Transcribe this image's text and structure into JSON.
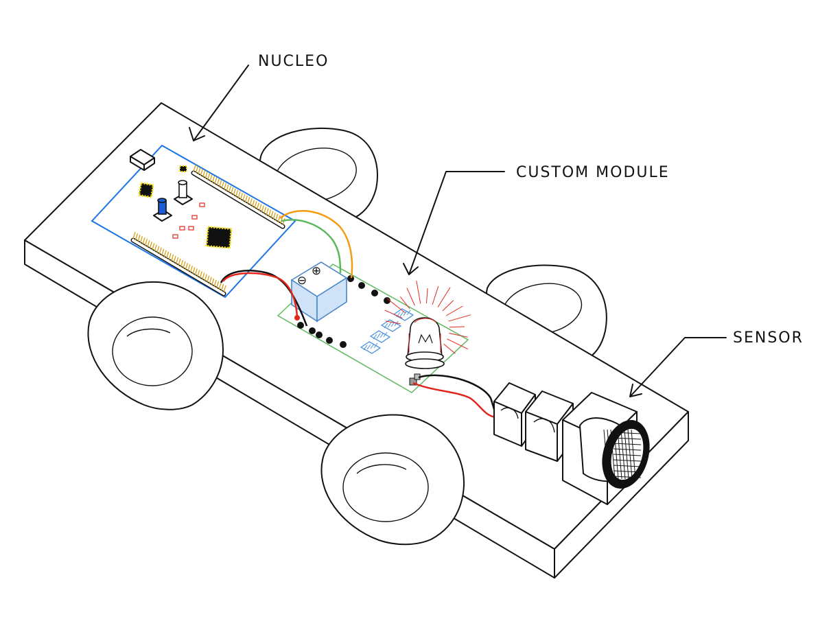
{
  "labels": {
    "nucleo": "NUCLEO",
    "custom_module": "CUSTOM MODULE",
    "sensor": "SENSOR"
  },
  "terminal_block": {
    "minus": "⊖",
    "plus": "⊕"
  },
  "colors": {
    "outline": "#111111",
    "nucleo_board": "#1a73e8",
    "module_board": "#5cb85c",
    "header_pins": "#d4a017",
    "chip": "#111111",
    "chip_glow": "#ffe600",
    "smd_parts": "#e8433a",
    "blue_button": "#1e5bd8",
    "terminal_block": "#7aaee6",
    "wire_orange": "#f39c12",
    "wire_green": "#5cb85c",
    "wire_red": "#e3261b",
    "wire_black": "#111111",
    "led_glow": "#e3261b",
    "resistors": "#4a90e2"
  }
}
